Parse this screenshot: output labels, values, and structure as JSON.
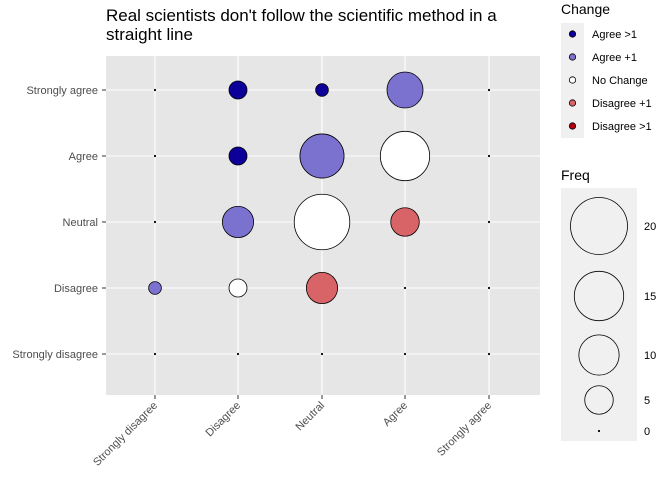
{
  "chart_data": {
    "type": "scatter",
    "title": "Real scientists don't follow the scientific method in a straight line",
    "title_lines": [
      "Real scientists don't follow the scientific method in a",
      "straight line"
    ],
    "xlabel": "",
    "ylabel": "",
    "x_categories": [
      "Strongly disagree",
      "Disagree",
      "Neutral",
      "Agree",
      "Strongly agree"
    ],
    "y_categories": [
      "Strongly disagree",
      "Disagree",
      "Neutral",
      "Agree",
      "Strongly agree"
    ],
    "grid": true,
    "legend_position": "right",
    "change_legend": {
      "title": "Change",
      "items": [
        {
          "label": "Agree >1",
          "color": "#0d0099"
        },
        {
          "label": "Agree +1",
          "color": "#7b72d0"
        },
        {
          "label": "No Change",
          "color": "#ffffff"
        },
        {
          "label": "Disagree +1",
          "color": "#d96468"
        },
        {
          "label": "Disagree >1",
          "color": "#b3000d"
        }
      ]
    },
    "size_legend": {
      "title": "Freq",
      "values": [
        20,
        15,
        10,
        5,
        0
      ],
      "labels": [
        "20",
        "15",
        "10",
        "5",
        "0"
      ],
      "max": 20
    },
    "points": [
      {
        "x": "Strongly disagree",
        "y": "Strongly agree",
        "freq": 0,
        "change": "No Change"
      },
      {
        "x": "Disagree",
        "y": "Strongly agree",
        "freq": 2,
        "change": "Agree >1"
      },
      {
        "x": "Neutral",
        "y": "Strongly agree",
        "freq": 1,
        "change": "Agree >1"
      },
      {
        "x": "Agree",
        "y": "Strongly agree",
        "freq": 8,
        "change": "Agree +1"
      },
      {
        "x": "Strongly agree",
        "y": "Strongly agree",
        "freq": 0,
        "change": "No Change"
      },
      {
        "x": "Strongly disagree",
        "y": "Agree",
        "freq": 0,
        "change": "No Change"
      },
      {
        "x": "Disagree",
        "y": "Agree",
        "freq": 2,
        "change": "Agree >1"
      },
      {
        "x": "Neutral",
        "y": "Agree",
        "freq": 12,
        "change": "Agree +1"
      },
      {
        "x": "Agree",
        "y": "Agree",
        "freq": 15,
        "change": "No Change"
      },
      {
        "x": "Strongly agree",
        "y": "Agree",
        "freq": 0,
        "change": "No Change"
      },
      {
        "x": "Strongly disagree",
        "y": "Neutral",
        "freq": 0,
        "change": "No Change"
      },
      {
        "x": "Disagree",
        "y": "Neutral",
        "freq": 6,
        "change": "Agree +1"
      },
      {
        "x": "Neutral",
        "y": "Neutral",
        "freq": 19,
        "change": "No Change"
      },
      {
        "x": "Agree",
        "y": "Neutral",
        "freq": 5,
        "change": "Disagree +1"
      },
      {
        "x": "Strongly agree",
        "y": "Neutral",
        "freq": 0,
        "change": "No Change"
      },
      {
        "x": "Strongly disagree",
        "y": "Disagree",
        "freq": 1,
        "change": "Agree +1"
      },
      {
        "x": "Disagree",
        "y": "Disagree",
        "freq": 2,
        "change": "No Change"
      },
      {
        "x": "Neutral",
        "y": "Disagree",
        "freq": 6,
        "change": "Disagree +1"
      },
      {
        "x": "Agree",
        "y": "Disagree",
        "freq": 0,
        "change": "No Change"
      },
      {
        "x": "Strongly agree",
        "y": "Disagree",
        "freq": 0,
        "change": "No Change"
      },
      {
        "x": "Strongly disagree",
        "y": "Strongly disagree",
        "freq": 0,
        "change": "No Change"
      },
      {
        "x": "Disagree",
        "y": "Strongly disagree",
        "freq": 0,
        "change": "No Change"
      },
      {
        "x": "Neutral",
        "y": "Strongly disagree",
        "freq": 0,
        "change": "No Change"
      },
      {
        "x": "Agree",
        "y": "Strongly disagree",
        "freq": 0,
        "change": "No Change"
      },
      {
        "x": "Strongly agree",
        "y": "Strongly disagree",
        "freq": 0,
        "change": "No Change"
      }
    ]
  }
}
